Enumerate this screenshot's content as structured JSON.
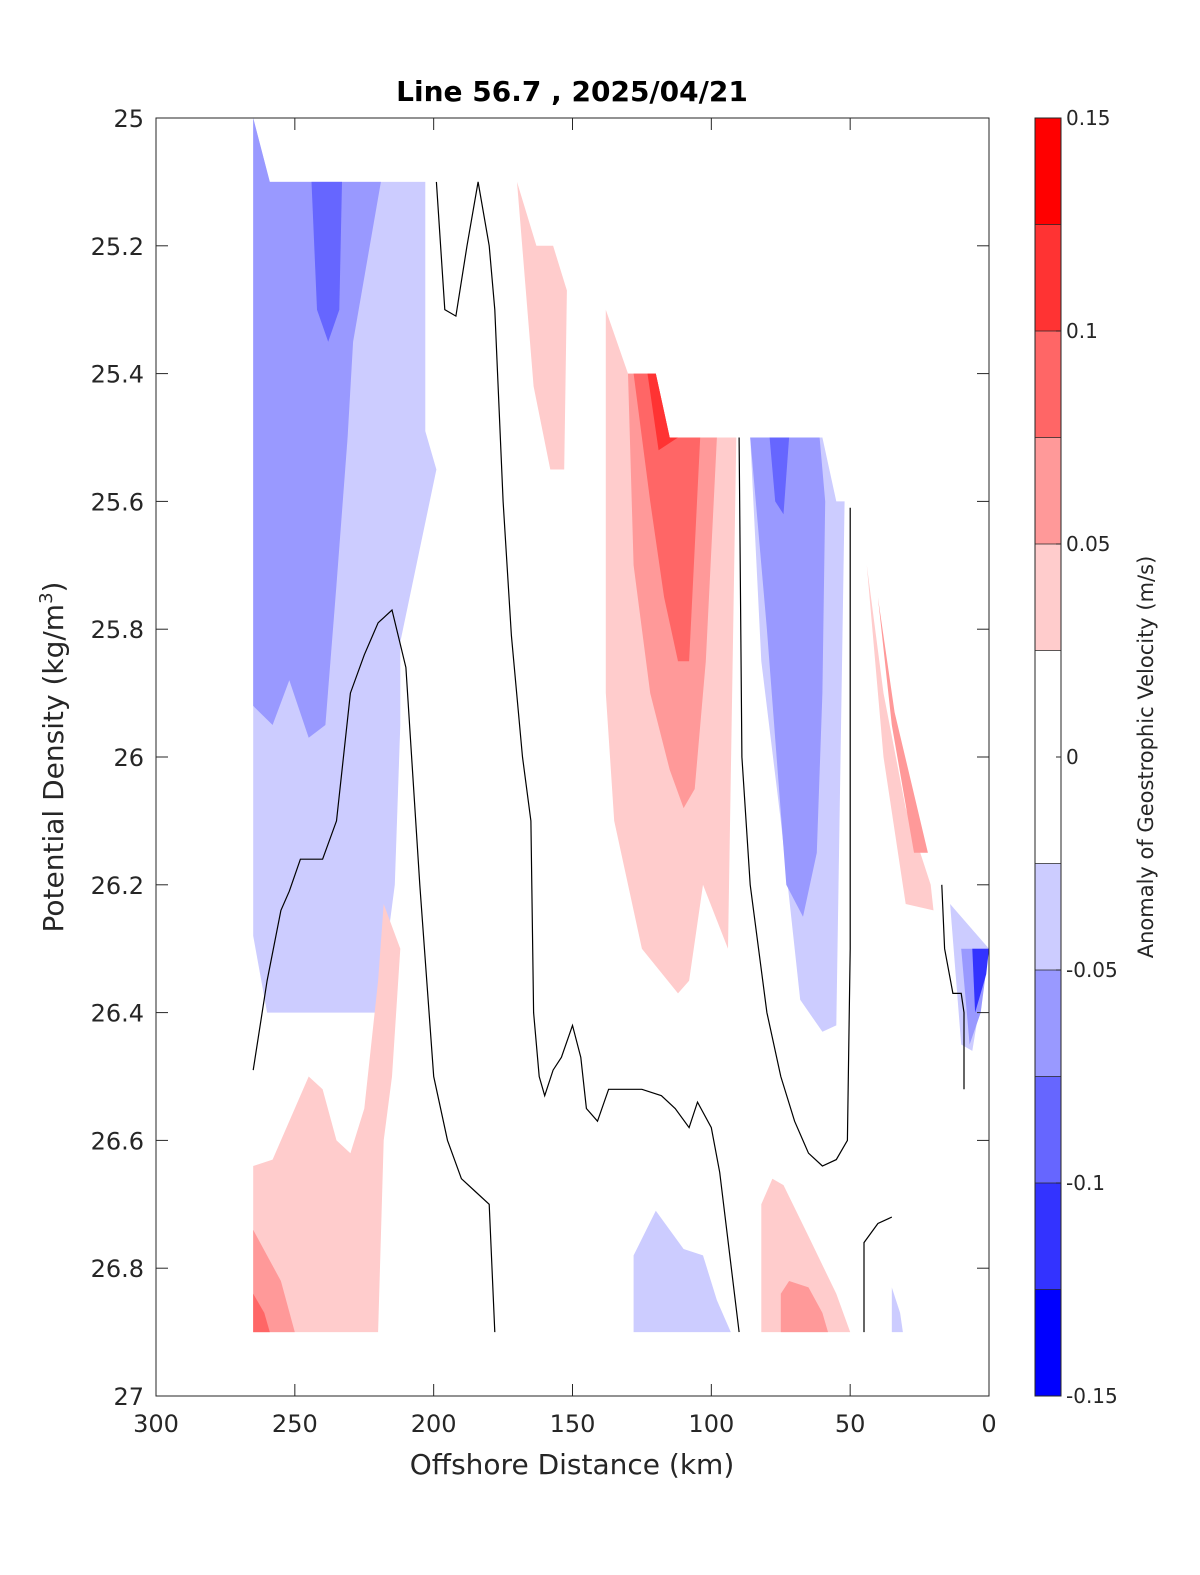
{
  "chart_data": {
    "type": "contour",
    "title": "Line 56.7 , 2025/04/21",
    "xlabel": "Offshore Distance (km)",
    "ylabel_main": "Potential Density (kg/m",
    "ylabel_sup": "3",
    "ylabel_close": ")",
    "xlim": [
      300,
      0
    ],
    "ylim": [
      25,
      27
    ],
    "y_reversed": true,
    "grid": false,
    "xticks": [
      {
        "value": 300,
        "label": "300"
      },
      {
        "value": 250,
        "label": "250"
      },
      {
        "value": 200,
        "label": "200"
      },
      {
        "value": 150,
        "label": "150"
      },
      {
        "value": 100,
        "label": "100"
      },
      {
        "value": 50,
        "label": "50"
      },
      {
        "value": 0,
        "label": "0"
      }
    ],
    "yticks": [
      {
        "value": 25,
        "label": "25"
      },
      {
        "value": 25.2,
        "label": "25.2"
      },
      {
        "value": 25.4,
        "label": "25.4"
      },
      {
        "value": 25.6,
        "label": "25.6"
      },
      {
        "value": 25.8,
        "label": "25.8"
      },
      {
        "value": 26,
        "label": "26"
      },
      {
        "value": 26.2,
        "label": "26.2"
      },
      {
        "value": 26.4,
        "label": "26.4"
      },
      {
        "value": 26.6,
        "label": "26.6"
      },
      {
        "value": 26.8,
        "label": "26.8"
      },
      {
        "value": 27,
        "label": "27"
      }
    ],
    "colorbar": {
      "label": "Anomaly of Geostrophic Velocity (m/s)",
      "range": [
        -0.15,
        0.15
      ],
      "levels": [
        {
          "from": 0.125,
          "to": 0.15,
          "color": "#ff0000"
        },
        {
          "from": 0.1,
          "to": 0.125,
          "color": "#ff3333"
        },
        {
          "from": 0.075,
          "to": 0.1,
          "color": "#ff6666"
        },
        {
          "from": 0.05,
          "to": 0.075,
          "color": "#ff9999"
        },
        {
          "from": 0.025,
          "to": 0.05,
          "color": "#ffcccc"
        },
        {
          "from": -0.025,
          "to": 0.025,
          "color": "#ffffff"
        },
        {
          "from": -0.05,
          "to": -0.025,
          "color": "#ccccff"
        },
        {
          "from": -0.075,
          "to": -0.05,
          "color": "#9999ff"
        },
        {
          "from": -0.1,
          "to": -0.075,
          "color": "#6666ff"
        },
        {
          "from": -0.125,
          "to": -0.1,
          "color": "#3333ff"
        },
        {
          "from": -0.15,
          "to": -0.125,
          "color": "#0000ff"
        }
      ],
      "ticks": [
        {
          "value": 0.15,
          "label": "0.15"
        },
        {
          "value": 0.1,
          "label": "0.1"
        },
        {
          "value": 0.05,
          "label": "0.05"
        },
        {
          "value": 0,
          "label": "0"
        },
        {
          "value": -0.05,
          "label": "-0.05"
        },
        {
          "value": -0.1,
          "label": "-0.1"
        },
        {
          "value": -0.15,
          "label": "-0.15"
        }
      ]
    },
    "regions": [
      {
        "level": -0.0375,
        "color": "#ccccff",
        "points": [
          [
            265,
            25
          ],
          [
            259,
            25.1
          ],
          [
            203,
            25.1
          ],
          [
            203,
            25.49
          ],
          [
            199,
            25.55
          ],
          [
            212,
            25.82
          ],
          [
            212,
            25.95
          ],
          [
            214,
            26.2
          ],
          [
            220,
            26.4
          ],
          [
            260,
            26.4
          ],
          [
            265,
            26.28
          ]
        ]
      },
      {
        "level": -0.0625,
        "color": "#9999ff",
        "points": [
          [
            265,
            25
          ],
          [
            259,
            25.1
          ],
          [
            219,
            25.1
          ],
          [
            229,
            25.35
          ],
          [
            231,
            25.5
          ],
          [
            235,
            25.73
          ],
          [
            239,
            25.95
          ],
          [
            245,
            25.97
          ],
          [
            252,
            25.88
          ],
          [
            258,
            25.95
          ],
          [
            265,
            25.92
          ]
        ]
      },
      {
        "level": -0.0875,
        "color": "#6666ff",
        "points": [
          [
            244,
            25.1
          ],
          [
            233,
            25.1
          ],
          [
            234,
            25.3
          ],
          [
            238,
            25.35
          ],
          [
            242,
            25.3
          ]
        ]
      },
      {
        "level": 0.0375,
        "color": "#ffcccc",
        "points": [
          [
            170,
            25.1
          ],
          [
            163,
            25.2
          ],
          [
            157,
            25.2
          ],
          [
            152,
            25.27
          ],
          [
            153,
            25.55
          ],
          [
            158,
            25.55
          ],
          [
            164,
            25.42
          ]
        ]
      },
      {
        "level": 0.0375,
        "color": "#ffcccc",
        "points": [
          [
            138,
            25.3
          ],
          [
            130,
            25.4
          ],
          [
            120,
            25.4
          ],
          [
            115,
            25.5
          ],
          [
            91,
            25.5
          ],
          [
            94,
            26.3
          ],
          [
            103,
            26.2
          ],
          [
            108,
            26.35
          ],
          [
            112,
            26.37
          ],
          [
            125,
            26.3
          ],
          [
            135,
            26.1
          ],
          [
            138,
            25.9
          ]
        ]
      },
      {
        "level": 0.0625,
        "color": "#ff9999",
        "points": [
          [
            130,
            25.4
          ],
          [
            120,
            25.4
          ],
          [
            115,
            25.5
          ],
          [
            98,
            25.5
          ],
          [
            102,
            25.85
          ],
          [
            106,
            26.05
          ],
          [
            110,
            26.08
          ],
          [
            115,
            26.02
          ],
          [
            122,
            25.9
          ],
          [
            128,
            25.7
          ]
        ]
      },
      {
        "level": 0.0875,
        "color": "#ff6666",
        "points": [
          [
            128,
            25.4
          ],
          [
            120,
            25.4
          ],
          [
            115,
            25.5
          ],
          [
            104,
            25.5
          ],
          [
            108,
            25.85
          ],
          [
            112,
            25.85
          ],
          [
            117,
            25.75
          ],
          [
            122,
            25.6
          ]
        ]
      },
      {
        "level": 0.1125,
        "color": "#ff3333",
        "points": [
          [
            123,
            25.4
          ],
          [
            120,
            25.4
          ],
          [
            115,
            25.5
          ],
          [
            112,
            25.5
          ],
          [
            119,
            25.52
          ]
        ]
      },
      {
        "level": -0.0375,
        "color": "#ccccff",
        "points": [
          [
            86,
            25.5
          ],
          [
            60,
            25.5
          ],
          [
            55,
            25.6
          ],
          [
            52,
            25.6
          ],
          [
            55,
            26.42
          ],
          [
            60,
            26.43
          ],
          [
            68,
            26.38
          ],
          [
            75,
            26.1
          ],
          [
            82,
            25.85
          ]
        ]
      },
      {
        "level": -0.0625,
        "color": "#9999ff",
        "points": [
          [
            86,
            25.5
          ],
          [
            61,
            25.5
          ],
          [
            59,
            25.6
          ],
          [
            60,
            25.9
          ],
          [
            62,
            26.15
          ],
          [
            67,
            26.25
          ],
          [
            73,
            26.2
          ],
          [
            80,
            25.8
          ],
          [
            84,
            25.6
          ]
        ]
      },
      {
        "level": -0.0875,
        "color": "#6666ff",
        "points": [
          [
            79,
            25.5
          ],
          [
            72,
            25.5
          ],
          [
            74,
            25.62
          ],
          [
            77,
            25.6
          ]
        ]
      },
      {
        "level": 0.0375,
        "color": "#ffcccc",
        "points": [
          [
            44,
            25.7
          ],
          [
            38,
            26
          ],
          [
            30,
            26.23
          ],
          [
            20,
            26.24
          ],
          [
            21,
            26.2
          ],
          [
            30,
            26.08
          ],
          [
            38,
            25.9
          ]
        ]
      },
      {
        "level": 0.0625,
        "color": "#ff9999",
        "points": [
          [
            40,
            25.75
          ],
          [
            35,
            25.95
          ],
          [
            27,
            26.15
          ],
          [
            22,
            26.15
          ],
          [
            28,
            26.04
          ],
          [
            34,
            25.93
          ]
        ]
      },
      {
        "level": -0.0375,
        "color": "#ccccff",
        "points": [
          [
            14,
            26.23
          ],
          [
            10,
            26.45
          ],
          [
            6,
            26.46
          ],
          [
            0,
            26.3
          ]
        ]
      },
      {
        "level": -0.0625,
        "color": "#9999ff",
        "points": [
          [
            10,
            26.3
          ],
          [
            7,
            26.45
          ],
          [
            3,
            26.4
          ],
          [
            0,
            26.3
          ]
        ]
      },
      {
        "level": -0.1125,
        "color": "#3333ff",
        "points": [
          [
            6,
            26.3
          ],
          [
            5,
            26.4
          ],
          [
            1,
            26.34
          ],
          [
            0,
            26.3
          ]
        ]
      },
      {
        "level": 0.0375,
        "color": "#ffcccc",
        "points": [
          [
            265,
            26.64
          ],
          [
            258,
            26.63
          ],
          [
            250,
            26.55
          ],
          [
            245,
            26.5
          ],
          [
            240,
            26.52
          ],
          [
            235,
            26.6
          ],
          [
            230,
            26.62
          ],
          [
            225,
            26.55
          ],
          [
            220,
            26.35
          ],
          [
            218,
            26.23
          ],
          [
            212,
            26.3
          ],
          [
            215,
            26.5
          ],
          [
            218,
            26.6
          ],
          [
            220,
            26.9
          ],
          [
            265,
            26.9
          ]
        ]
      },
      {
        "level": 0.0625,
        "color": "#ff9999",
        "points": [
          [
            265,
            26.74
          ],
          [
            265,
            26.9
          ],
          [
            250,
            26.9
          ],
          [
            255,
            26.82
          ]
        ]
      },
      {
        "level": 0.0875,
        "color": "#ff6666",
        "points": [
          [
            265,
            26.84
          ],
          [
            265,
            26.9
          ],
          [
            259,
            26.9
          ],
          [
            261,
            26.87
          ]
        ]
      },
      {
        "level": -0.0375,
        "color": "#ccccff",
        "points": [
          [
            128,
            26.9
          ],
          [
            128,
            26.78
          ],
          [
            120,
            26.71
          ],
          [
            110,
            26.77
          ],
          [
            103,
            26.78
          ],
          [
            98,
            26.85
          ],
          [
            93,
            26.9
          ]
        ]
      },
      {
        "level": 0.0375,
        "color": "#ffcccc",
        "points": [
          [
            82,
            26.9
          ],
          [
            82,
            26.7
          ],
          [
            78,
            26.66
          ],
          [
            74,
            26.67
          ],
          [
            65,
            26.75
          ],
          [
            55,
            26.84
          ],
          [
            50,
            26.9
          ]
        ]
      },
      {
        "level": 0.0625,
        "color": "#ff9999",
        "points": [
          [
            75,
            26.9
          ],
          [
            75,
            26.84
          ],
          [
            72,
            26.82
          ],
          [
            65,
            26.83
          ],
          [
            60,
            26.87
          ],
          [
            58,
            26.9
          ]
        ]
      },
      {
        "level": -0.0375,
        "color": "#ccccff",
        "points": [
          [
            35,
            26.9
          ],
          [
            35,
            26.83
          ],
          [
            32,
            26.87
          ],
          [
            31,
            26.9
          ]
        ]
      }
    ],
    "zero_contours": [
      {
        "level": 0,
        "points": [
          [
            265,
            26.49
          ],
          [
            260,
            26.35
          ],
          [
            255,
            26.24
          ],
          [
            252,
            26.21
          ],
          [
            248,
            26.16
          ],
          [
            245,
            26.16
          ],
          [
            240,
            26.16
          ],
          [
            235,
            26.1
          ],
          [
            230,
            25.9
          ],
          [
            225,
            25.84
          ],
          [
            220,
            25.79
          ],
          [
            215,
            25.77
          ],
          [
            210,
            25.86
          ],
          [
            205,
            26.2
          ],
          [
            200,
            26.5
          ],
          [
            195,
            26.6
          ],
          [
            190,
            26.66
          ],
          [
            185,
            26.68
          ],
          [
            180,
            26.7
          ],
          [
            178,
            26.9
          ]
        ]
      },
      {
        "level": 0,
        "points": [
          [
            199,
            25.1
          ],
          [
            196,
            25.3
          ],
          [
            192,
            25.31
          ],
          [
            188,
            25.2
          ],
          [
            184,
            25.1
          ],
          [
            180,
            25.2
          ],
          [
            178,
            25.3
          ],
          [
            175,
            25.6
          ],
          [
            172,
            25.81
          ],
          [
            168,
            26.0
          ],
          [
            165,
            26.1
          ],
          [
            164,
            26.4
          ],
          [
            162,
            26.5
          ],
          [
            160,
            26.53
          ],
          [
            157,
            26.49
          ],
          [
            154,
            26.47
          ],
          [
            150,
            26.42
          ],
          [
            147,
            26.47
          ],
          [
            145,
            26.55
          ],
          [
            141,
            26.57
          ],
          [
            137,
            26.52
          ],
          [
            130,
            26.52
          ],
          [
            125,
            26.52
          ],
          [
            118,
            26.53
          ],
          [
            113,
            26.55
          ],
          [
            108,
            26.58
          ],
          [
            105,
            26.54
          ],
          [
            100,
            26.58
          ],
          [
            97,
            26.65
          ],
          [
            90,
            26.9
          ]
        ]
      },
      {
        "level": 0,
        "points": [
          [
            90,
            25.5
          ],
          [
            89,
            26.0
          ],
          [
            86,
            26.2
          ],
          [
            80,
            26.4
          ],
          [
            75,
            26.5
          ],
          [
            70,
            26.57
          ],
          [
            65,
            26.62
          ],
          [
            60,
            26.64
          ],
          [
            55,
            26.63
          ],
          [
            51,
            26.6
          ],
          [
            50,
            26.3
          ],
          [
            50,
            26.0
          ],
          [
            50,
            25.61
          ]
        ]
      },
      {
        "level": 0,
        "points": [
          [
            45,
            26.9
          ],
          [
            45,
            26.76
          ],
          [
            40,
            26.73
          ],
          [
            35,
            26.72
          ]
        ]
      },
      {
        "level": 0,
        "points": [
          [
            17,
            26.2
          ],
          [
            16,
            26.3
          ],
          [
            13,
            26.37
          ],
          [
            10,
            26.37
          ],
          [
            9,
            26.4
          ],
          [
            9,
            26.52
          ]
        ]
      }
    ]
  }
}
